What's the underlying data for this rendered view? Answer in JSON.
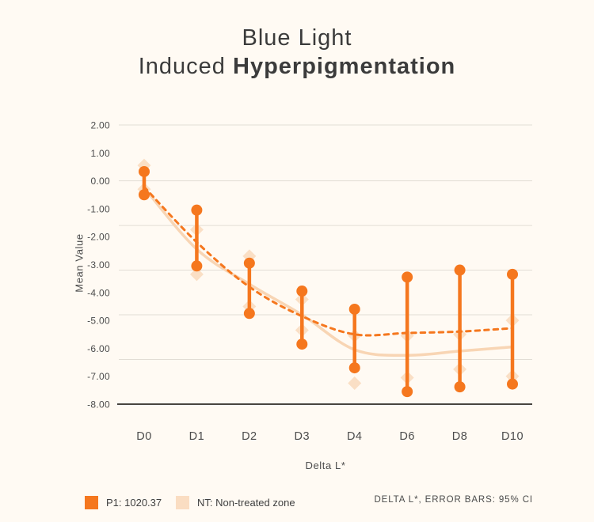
{
  "title": {
    "line1": "Blue Light",
    "line2_regular": "Induced ",
    "line2_bold": "Hyperpigmentation"
  },
  "colors": {
    "background": "#FFFAF3",
    "p1_orange": "#F5771E",
    "nt_peach": "#FADDC2",
    "nt_line_peach": "#F8D5B4",
    "gridline": "#E2DDD5",
    "axis_line": "#48443F",
    "text_dark": "#3B3B3B",
    "text_gray": "#4C4C4C"
  },
  "chart_data": {
    "type": "line",
    "title": "Blue Light Induced Hyperpigmentation",
    "x_axis_title": "Delta L*",
    "y_axis_title": "Mean Value",
    "categories": [
      "D0",
      "D1",
      "D2",
      "D3",
      "D4",
      "D6",
      "D8",
      "D10"
    ],
    "ylim": [
      -8,
      2
    ],
    "y_ticks": [
      {
        "value": 2,
        "label": "2.00"
      },
      {
        "value": 1,
        "label": "1.00"
      },
      {
        "value": 0,
        "label": "0.00"
      },
      {
        "value": -1,
        "label": "-1.00"
      },
      {
        "value": -2,
        "label": "-2.00"
      },
      {
        "value": -3,
        "label": "-3.00"
      },
      {
        "value": -4,
        "label": "-4.00"
      },
      {
        "value": -5,
        "label": "-5.00"
      },
      {
        "value": -6,
        "label": "-6.00"
      },
      {
        "value": -7,
        "label": "-7.00"
      },
      {
        "value": -8,
        "label": "-8.00"
      }
    ],
    "gridline_values": [
      2,
      0,
      -1.6,
      -3.2,
      -4.8,
      -6.4
    ],
    "baseline_value": -8,
    "legend_position": "bottom",
    "series": [
      {
        "name": "P1: 1020.37",
        "color": "#F5771E",
        "style": "dashed mean line with round-capped 95% CI error bars",
        "mean": [
          -0.22,
          -2.2,
          -3.8,
          -4.85,
          -5.5,
          -5.45,
          -5.4,
          -5.28
        ],
        "ci_upper": [
          0.33,
          -1.05,
          -2.95,
          -3.95,
          -4.6,
          -3.45,
          -3.2,
          -3.35
        ],
        "ci_lower": [
          -0.5,
          -3.05,
          -4.75,
          -5.85,
          -6.7,
          -7.55,
          -7.38,
          -7.28
        ]
      },
      {
        "name": "NT: Non-treated zone",
        "color": "#FADDC2",
        "style": "smooth mean line with diamond 95% CI markers",
        "mean": [
          -0.25,
          -2.45,
          -3.7,
          -4.8,
          -6.05,
          -6.25,
          -6.1,
          -5.95
        ],
        "ci_upper": [
          0.55,
          -1.75,
          -2.7,
          -4.25,
          -5.55,
          -5.55,
          -5.5,
          -5.0
        ],
        "ci_lower": [
          -0.3,
          -3.35,
          -4.5,
          -5.35,
          -7.25,
          -7.05,
          -6.75,
          -7.0
        ]
      }
    ],
    "footnote": "DELTA L*, ERROR BARS: 95% CI"
  },
  "legend": {
    "items": [
      {
        "label": "P1: 1020.37",
        "color": "#F5771E"
      },
      {
        "label": "NT: Non-treated zone",
        "color": "#FADDC2"
      }
    ],
    "footnote": "DELTA L*, ERROR BARS: 95% CI"
  }
}
